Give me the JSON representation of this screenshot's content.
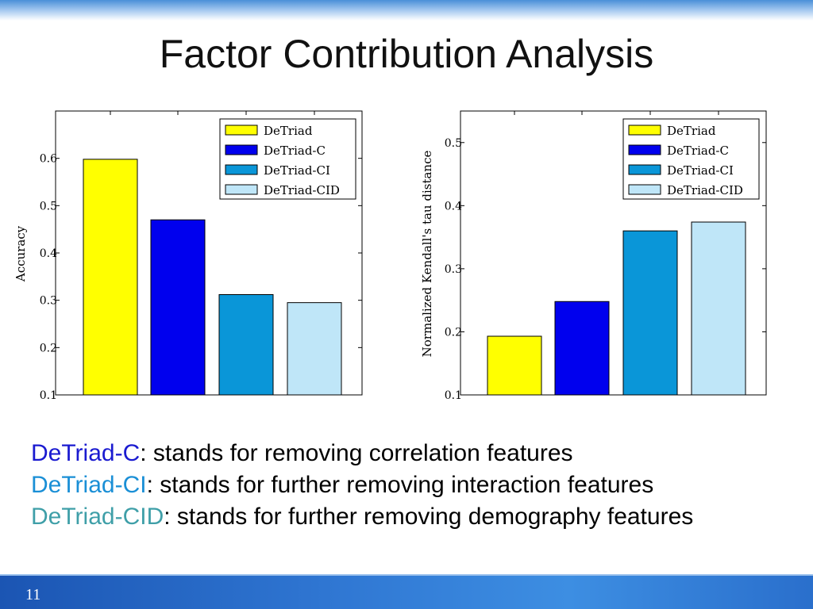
{
  "slide": {
    "title": "Factor Contribution Analysis",
    "page_number": "11"
  },
  "colors": {
    "DeTriad": "#ffff00",
    "DeTriad-C": "#0000ee",
    "DeTriad-CI": "#0a96d8",
    "DeTriad-CID": "#bfe6f8",
    "desc_C": "#1a1ad0",
    "desc_CI": "#1a8fd6",
    "desc_CID": "#3f9fa8"
  },
  "chart_data": [
    {
      "type": "bar",
      "categories": [
        "DeTriad",
        "DeTriad-C",
        "DeTriad-CI",
        "DeTriad-CID"
      ],
      "values": [
        0.598,
        0.47,
        0.312,
        0.295
      ],
      "xlabel": "",
      "ylabel": "Accuracy",
      "ylim": [
        0.1,
        0.7
      ],
      "yticks": [
        0.1,
        0.2,
        0.3,
        0.4,
        0.5,
        0.6
      ],
      "ytick_labels": [
        "0.1",
        "0.2",
        "0.3",
        "0.4",
        "0.5",
        "0.6"
      ],
      "legend": [
        "DeTriad",
        "DeTriad-C",
        "DeTriad-CI",
        "DeTriad-CID"
      ],
      "legend_position": "top-right",
      "grid": false
    },
    {
      "type": "bar",
      "categories": [
        "DeTriad",
        "DeTriad-C",
        "DeTriad-CI",
        "DeTriad-CID"
      ],
      "values": [
        0.193,
        0.248,
        0.36,
        0.374
      ],
      "xlabel": "",
      "ylabel": "Normalized Kendall's tau distance",
      "ylim": [
        0.1,
        0.55
      ],
      "yticks": [
        0.1,
        0.2,
        0.3,
        0.4,
        0.5
      ],
      "ytick_labels": [
        "0.1",
        "0.2",
        "0.3",
        "0.4",
        "0.5"
      ],
      "legend": [
        "DeTriad",
        "DeTriad-C",
        "DeTriad-CI",
        "DeTriad-CID"
      ],
      "legend_position": "top-right",
      "grid": false
    }
  ],
  "descriptions": [
    {
      "term": "DeTriad-C",
      "text": ": stands for removing correlation features"
    },
    {
      "term": "DeTriad-CI",
      "text": ": stands for further removing interaction features"
    },
    {
      "term": "DeTriad-CID",
      "text": ": stands for further removing demography features"
    }
  ]
}
